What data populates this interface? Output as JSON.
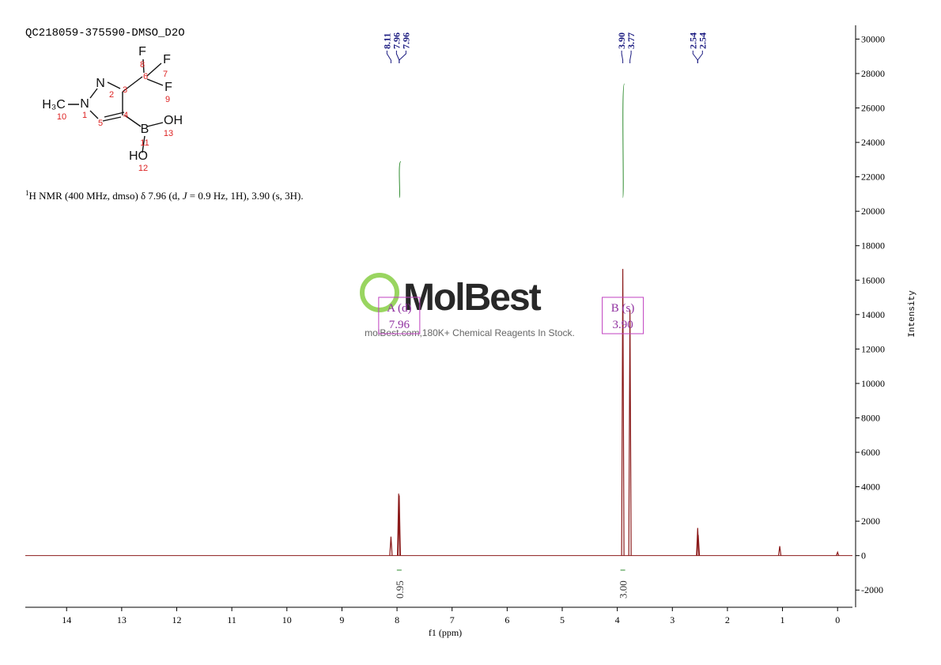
{
  "chart_data": {
    "type": "nmr",
    "title": "QC218059-375590-DMSO_D2O",
    "description": [
      "1",
      "H NMR (400 MHz, dmso) δ 7.96 (d, ",
      "J",
      " = 0.9 Hz, 1H), 3.90 (s, 3H)."
    ],
    "structure": {
      "atoms": [
        "F",
        "8",
        "F",
        "7",
        "6",
        "F",
        "9",
        "N",
        "2",
        "3",
        "H₃C",
        "N",
        "10",
        "1",
        "5",
        "4",
        "B",
        "OH",
        "13",
        "11",
        "HO",
        "12"
      ]
    },
    "watermark": {
      "brand": "MolBest",
      "tagline": "molBest.com,180K+ Chemical Reagents In Stock."
    },
    "xlabel": "f1 (ppm)",
    "ylabel": "Intensity",
    "xlim": [
      14.75,
      -0.27
    ],
    "ylim": [
      -3000,
      30800
    ],
    "xticks": [
      14,
      13,
      12,
      11,
      10,
      9,
      8,
      7,
      6,
      5,
      4,
      3,
      2,
      1,
      0
    ],
    "yticks": [
      -2000,
      0,
      2000,
      4000,
      6000,
      8000,
      10000,
      12000,
      14000,
      16000,
      18000,
      20000,
      22000,
      24000,
      26000,
      28000,
      30000
    ],
    "series": [
      {
        "name": "1H",
        "color": "#8b1a1a",
        "x": [
          8.11,
          7.97,
          7.96,
          3.9,
          3.77,
          2.54,
          2.53,
          1.05,
          0.0
        ],
        "values": [
          1100,
          3600,
          3500,
          16650,
          14260,
          1610,
          1200,
          550,
          200
        ]
      }
    ],
    "peak_labels": [
      8.11,
      7.96,
      7.96,
      {
        "value": 3.9,
        "label": "3.90"
      },
      3.77,
      2.54,
      2.54
    ],
    "integrals": {
      "x": [
        7.96,
        3.9
      ],
      "values": [
        0.95,
        3
      ],
      "value_labels": [
        "0.95",
        "3.00"
      ]
    },
    "multiplets": [
      {
        "label": "A (d)",
        "shift": 7.96
      },
      {
        "label": "B (s)",
        "shift": {
          "value": 3.9,
          "label": "3.90"
        }
      }
    ]
  }
}
